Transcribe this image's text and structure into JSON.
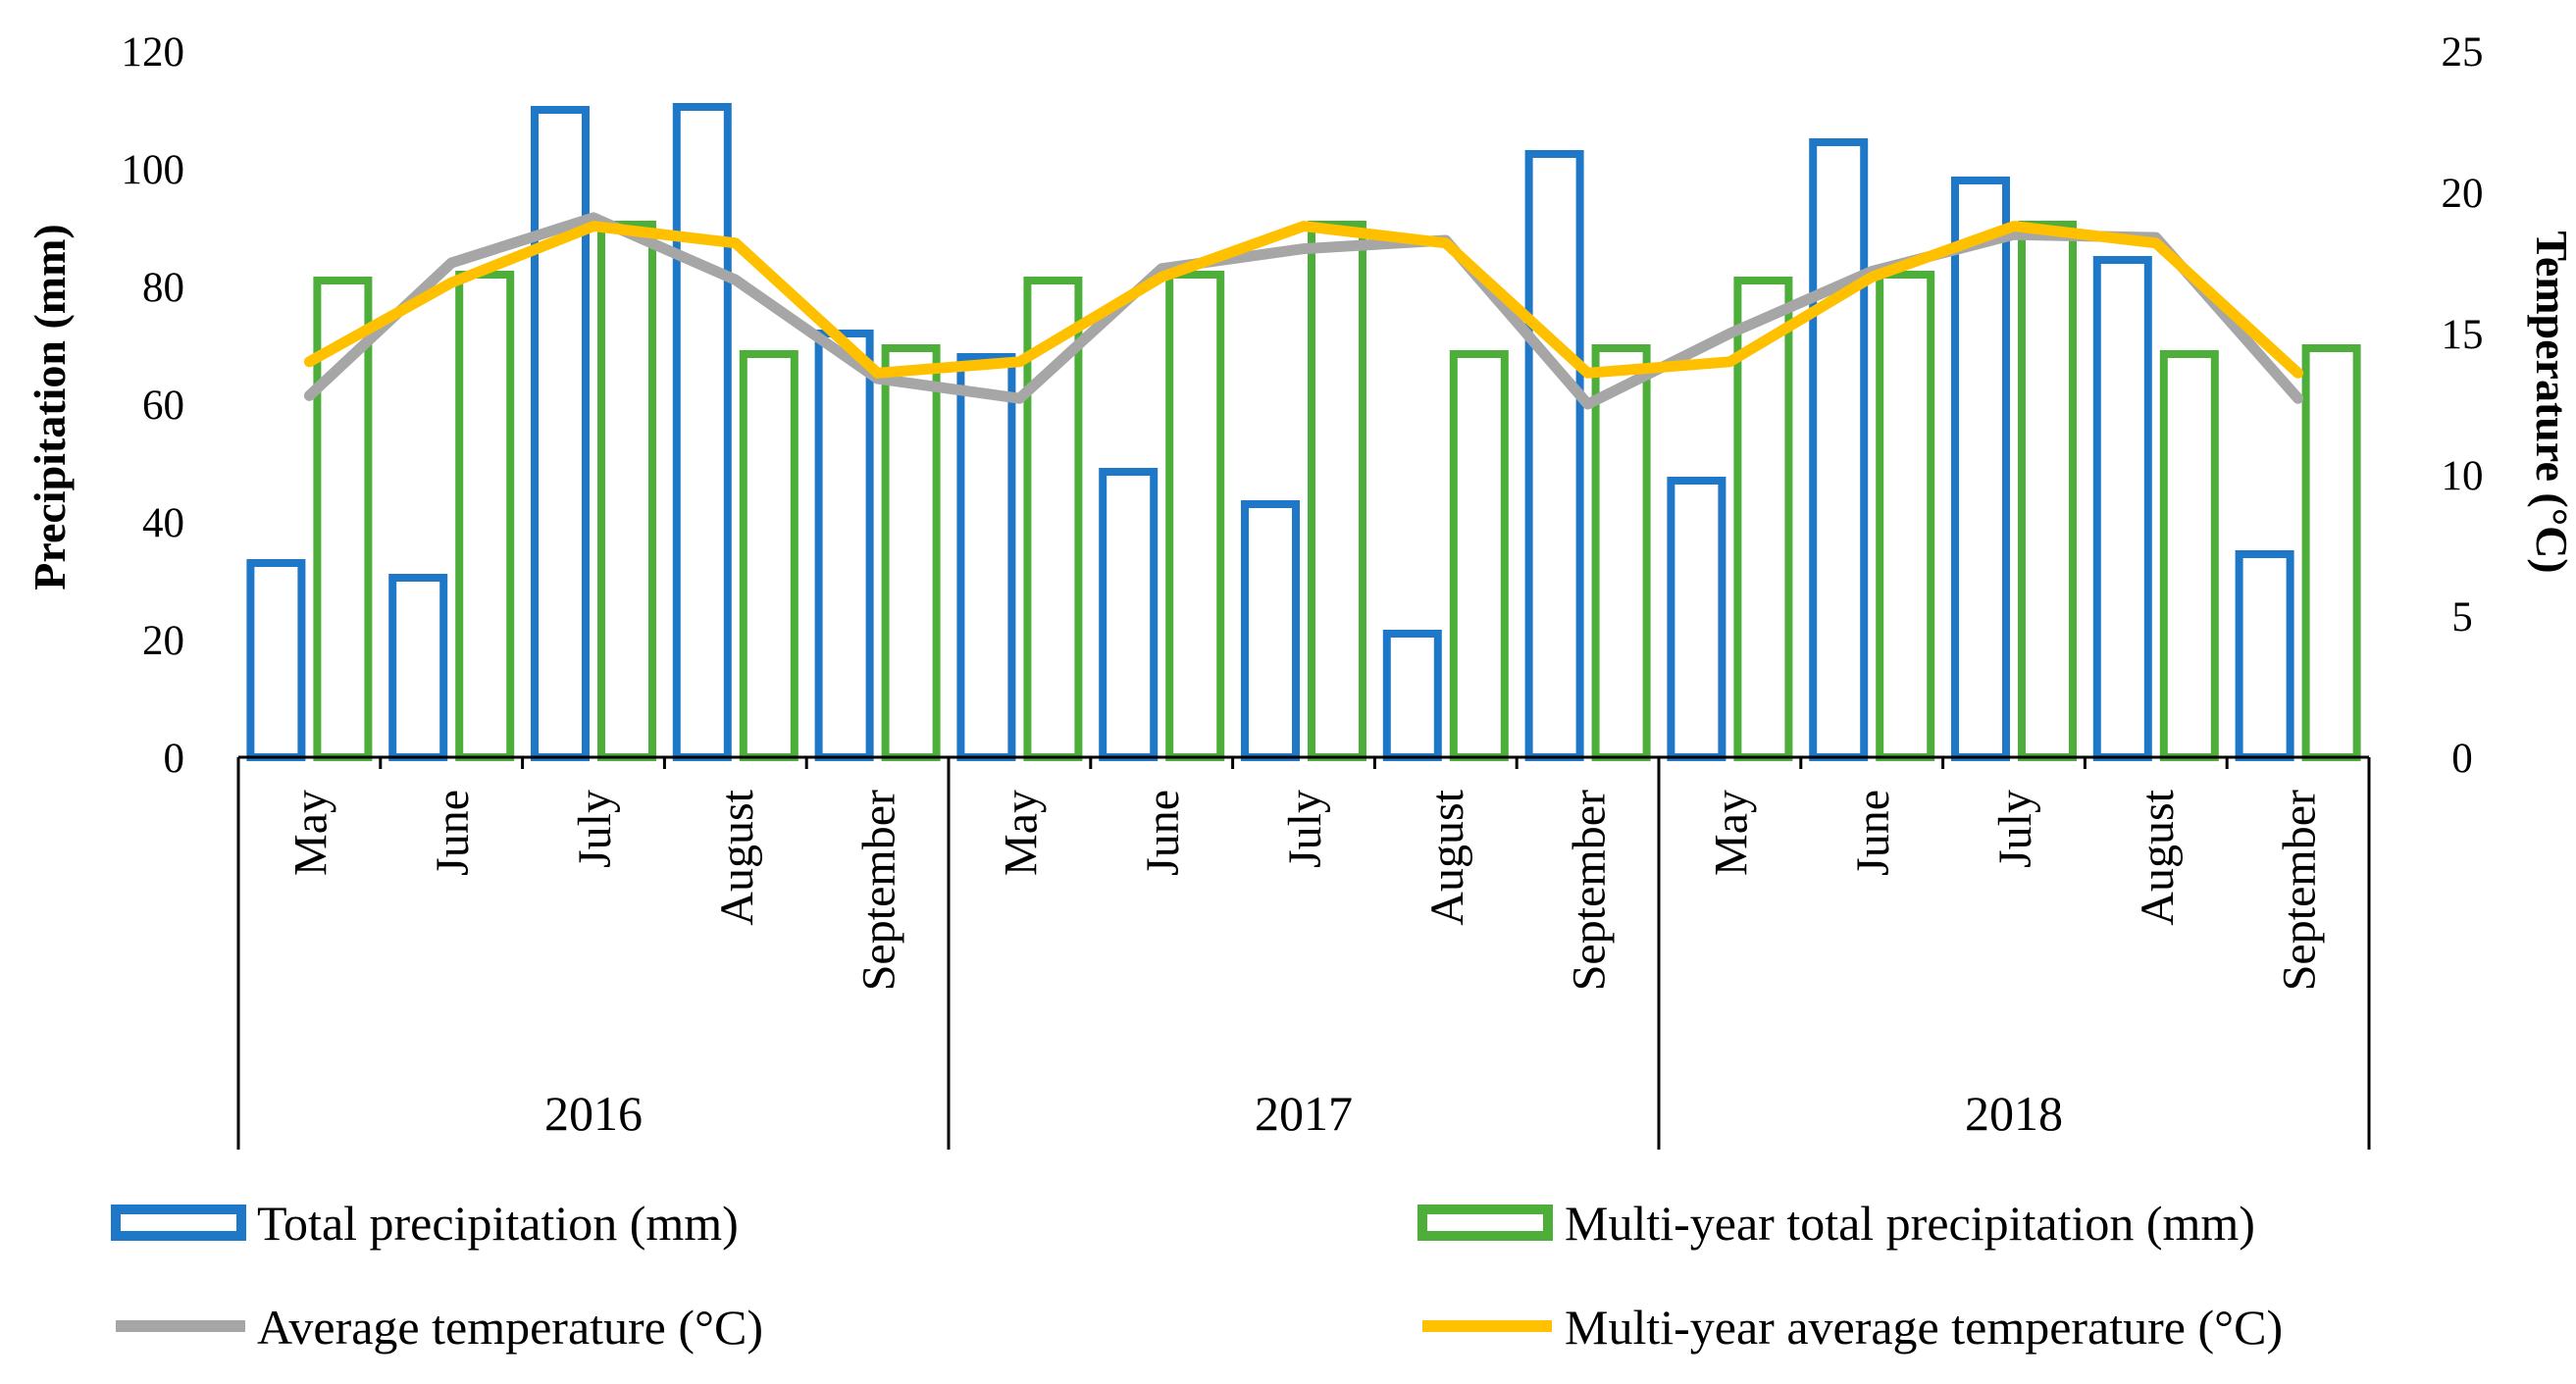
{
  "chart_data": {
    "type": "bar",
    "groups": [
      {
        "year": "2016",
        "months": [
          "May",
          "June",
          "July",
          "August",
          "September"
        ]
      },
      {
        "year": "2017",
        "months": [
          "May",
          "June",
          "July",
          "August",
          "September"
        ]
      },
      {
        "year": "2018",
        "months": [
          "May",
          "June",
          "July",
          "August",
          "September"
        ]
      }
    ],
    "series": [
      {
        "name": "Total precipitation (mm)",
        "kind": "bar",
        "axis": "left",
        "color": "#1F77C8",
        "values": [
          33,
          30.5,
          110,
          110.5,
          72,
          68,
          48.5,
          43,
          21,
          102.5,
          47,
          104.5,
          98,
          84.5,
          34.5
        ]
      },
      {
        "name": "Multi-year total precipitation (mm)",
        "kind": "bar",
        "axis": "left",
        "color": "#4DAF3A",
        "values": [
          81,
          82,
          90.5,
          68.5,
          69.5,
          81,
          82,
          90.5,
          68.5,
          69.5,
          81,
          82,
          90.5,
          68.5,
          69.5
        ]
      },
      {
        "name": "Average temperature (°C)",
        "kind": "line",
        "axis": "right",
        "color": "#A6A6A6",
        "values": [
          12.8,
          17.5,
          19.1,
          16.9,
          13.4,
          12.7,
          17.3,
          18.0,
          18.3,
          12.5,
          15.0,
          17.2,
          18.5,
          18.4,
          12.7
        ]
      },
      {
        "name": "Multi-year average temperature (°C)",
        "kind": "line",
        "axis": "right",
        "color": "#FFC000",
        "values": [
          14.0,
          16.8,
          18.8,
          18.2,
          13.6,
          14.0,
          17.0,
          18.8,
          18.2,
          13.6,
          14.0,
          17.0,
          18.8,
          18.2,
          13.6
        ]
      }
    ],
    "y_left": {
      "label": "Precipitation (mm)",
      "min": 0,
      "max": 120,
      "ticks": [
        "0",
        "20",
        "40",
        "60",
        "80",
        "100",
        "120"
      ]
    },
    "y_right": {
      "label": "Temperature (°C)",
      "min": 0,
      "max": 25,
      "ticks": [
        "0",
        "5",
        "10",
        "15",
        "20",
        "25"
      ]
    },
    "grid": false,
    "legend_position": "bottom"
  }
}
